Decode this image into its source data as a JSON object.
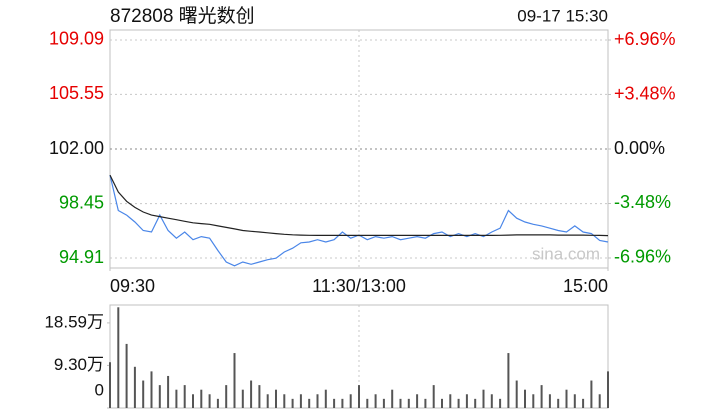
{
  "header": {
    "title": "872808 曙光数创",
    "time": "09-17 15:30"
  },
  "watermark": "sina.com",
  "chart_data": [
    {
      "type": "line",
      "x": [
        0,
        4,
        8,
        12,
        16,
        20,
        24,
        28,
        32,
        36,
        40,
        44,
        48,
        52,
        56,
        60,
        64,
        68,
        72,
        76,
        80,
        84,
        88,
        92,
        96,
        100,
        104,
        108,
        112,
        116,
        120,
        124,
        128,
        132,
        136,
        140,
        144,
        148,
        152,
        156,
        160,
        164,
        168,
        172,
        176,
        180,
        184,
        188,
        192,
        196,
        200,
        204,
        208,
        212,
        216,
        220,
        224,
        228,
        232,
        236,
        240
      ],
      "xlim": [
        0,
        240
      ],
      "xticks": [
        {
          "value": 0,
          "label": "09:30"
        },
        {
          "value": 120,
          "label": "11:30/13:00"
        },
        {
          "value": 240,
          "label": "15:00"
        }
      ],
      "ylim": [
        94.26,
        109.74
      ],
      "yticks": [
        94.91,
        98.45,
        {
          "value": 102,
          "label": "102.00"
        },
        105.55,
        109.09
      ],
      "y2lim": [
        -7.6,
        7.6
      ],
      "y2ticks": [
        {
          "value": -6.96,
          "label": "-6.96%"
        },
        {
          "value": -3.48,
          "label": "-3.48%"
        },
        {
          "value": 0,
          "label": "0.00%"
        },
        {
          "value": 3.48,
          "label": "+3.48%"
        },
        {
          "value": 6.96,
          "label": "+6.96%"
        }
      ],
      "up_color": "#e60000",
      "down_color": "#009a00",
      "grid": true,
      "series": [
        {
          "color": "#4a86e8",
          "values": [
            100.3,
            98.0,
            97.7,
            97.25,
            96.7,
            96.6,
            97.7,
            96.7,
            96.2,
            96.6,
            96.1,
            96.3,
            96.2,
            95.4,
            94.65,
            94.4,
            94.65,
            94.5,
            94.65,
            94.8,
            94.9,
            95.3,
            95.55,
            95.9,
            95.95,
            96.1,
            95.95,
            96.1,
            96.6,
            96.2,
            96.4,
            96.1,
            96.3,
            96.2,
            96.3,
            96.1,
            96.2,
            96.3,
            96.2,
            96.5,
            96.6,
            96.3,
            96.5,
            96.3,
            96.5,
            96.3,
            96.6,
            96.85,
            98.0,
            97.5,
            97.25,
            97.1,
            97.0,
            96.85,
            96.7,
            96.6,
            97.0,
            96.6,
            96.5,
            96.05,
            95.95
          ]
        },
        {
          "color": "#222222",
          "values": [
            100.3,
            99.2,
            98.6,
            98.2,
            97.9,
            97.7,
            97.6,
            97.5,
            97.4,
            97.3,
            97.2,
            97.15,
            97.1,
            97.0,
            96.9,
            96.8,
            96.7,
            96.65,
            96.6,
            96.55,
            96.5,
            96.45,
            96.42,
            96.4,
            96.39,
            96.38,
            96.38,
            96.38,
            96.38,
            96.38,
            96.38,
            96.38,
            96.38,
            96.38,
            96.38,
            96.38,
            96.38,
            96.38,
            96.38,
            96.38,
            96.38,
            96.38,
            96.38,
            96.38,
            96.38,
            96.38,
            96.38,
            96.39,
            96.4,
            96.41,
            96.41,
            96.41,
            96.41,
            96.41,
            96.4,
            96.4,
            96.4,
            96.4,
            96.39,
            96.38,
            96.37
          ]
        }
      ]
    },
    {
      "type": "bar",
      "x": [
        0,
        4,
        8,
        12,
        16,
        20,
        24,
        28,
        32,
        36,
        40,
        44,
        48,
        52,
        56,
        60,
        64,
        68,
        72,
        76,
        80,
        84,
        88,
        92,
        96,
        100,
        104,
        108,
        112,
        116,
        120,
        124,
        128,
        132,
        136,
        140,
        144,
        148,
        152,
        156,
        160,
        164,
        168,
        172,
        176,
        180,
        184,
        188,
        192,
        196,
        200,
        204,
        208,
        212,
        216,
        220,
        224,
        228,
        232,
        236,
        240
      ],
      "xlim": [
        0,
        240
      ],
      "ylim": [
        0,
        22.5
      ],
      "yticks": [
        0,
        {
          "value": 9.3,
          "label": "9.30万"
        },
        {
          "value": 18.59,
          "label": "18.59万"
        }
      ],
      "color": "#555555",
      "values": [
        10,
        22,
        14,
        9,
        6,
        8,
        5,
        7,
        4,
        5,
        3,
        4,
        3,
        2,
        5,
        12,
        4,
        6,
        5,
        3,
        4,
        3,
        2,
        3,
        2,
        3,
        4,
        2,
        2,
        3,
        5,
        2,
        3,
        2,
        4,
        2,
        2,
        3,
        2,
        5,
        2,
        3,
        2,
        3,
        2,
        4,
        3,
        2,
        12,
        6,
        4,
        3,
        5,
        3,
        2,
        4,
        3,
        2,
        6,
        3,
        8
      ]
    }
  ]
}
